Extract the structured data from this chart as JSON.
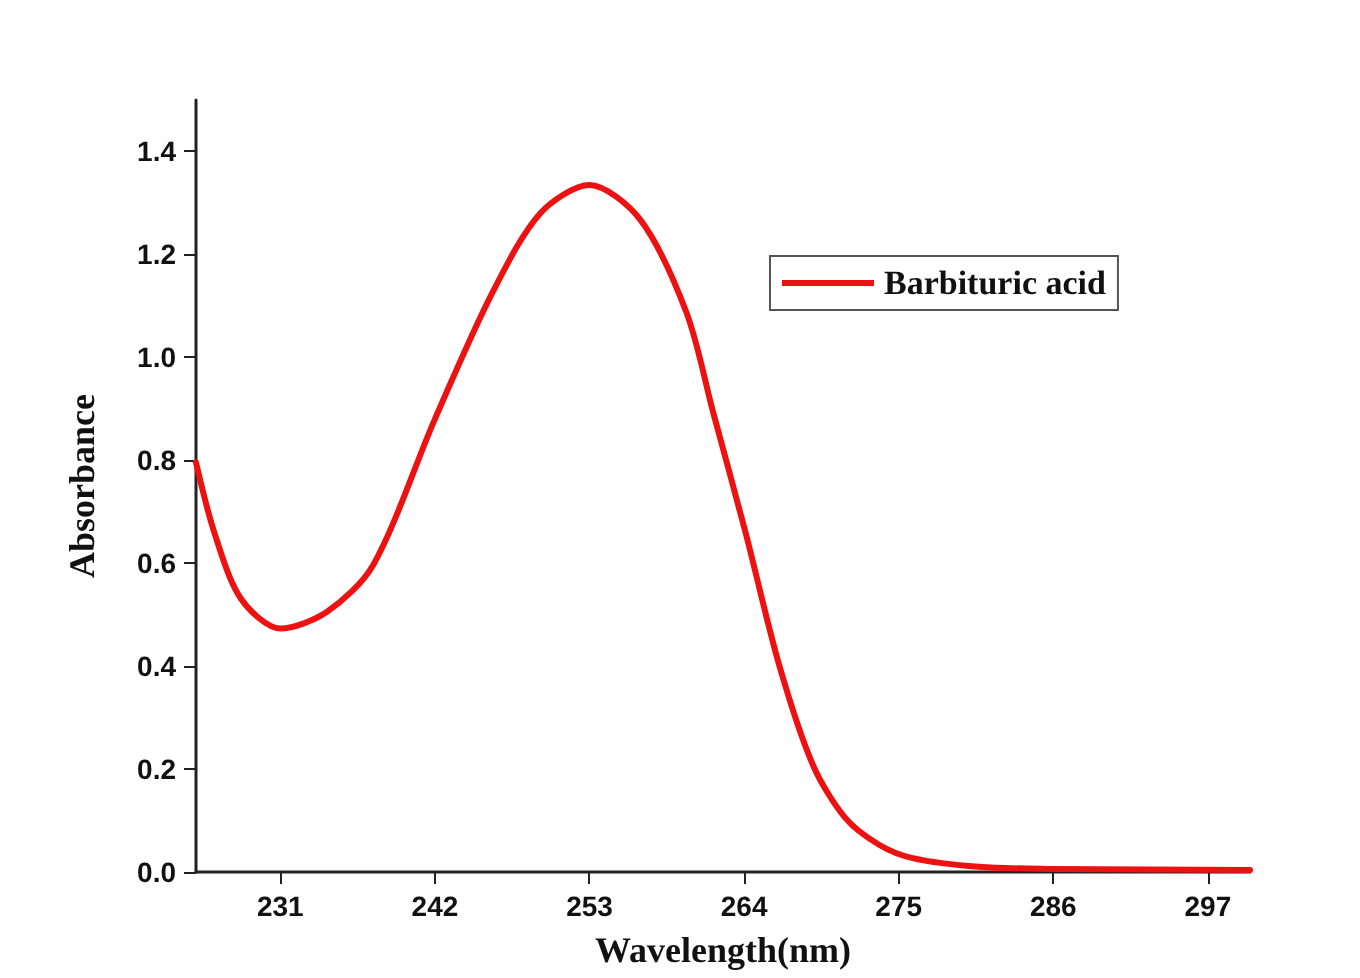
{
  "chart_data": {
    "type": "line",
    "xlabel": "Wavelength(nm)",
    "ylabel": "Absorbance",
    "xlim": [
      225,
      300
    ],
    "ylim": [
      0,
      1.5
    ],
    "xticks": [
      231,
      242,
      253,
      264,
      275,
      286,
      297
    ],
    "yticks": [
      {
        "value": 0,
        "label": "0.0"
      },
      0.2,
      0.4,
      0.6,
      0.8,
      {
        "value": 1,
        "label": "1.0"
      },
      1.2,
      1.4
    ],
    "grid": false,
    "legend": "top right",
    "marker": "none",
    "line_style": "solid",
    "series": [
      {
        "name": "Barbituric acid",
        "color": "#ee1111",
        "x": [
          225,
          226.3,
          228.2,
          231,
          234.3,
          237.6,
          242,
          246.1,
          249.5,
          253,
          256.6,
          259.9,
          261.8,
          264.1,
          266.5,
          268.9,
          271.2,
          273.6,
          276,
          280.7,
          286,
          293,
          300
        ],
        "values": [
          0.796,
          0.66,
          0.531,
          0.473,
          0.505,
          0.596,
          0.88,
          1.126,
          1.28,
          1.335,
          1.268,
          1.087,
          0.893,
          0.66,
          0.402,
          0.208,
          0.105,
          0.053,
          0.027,
          0.01,
          0.006,
          0.005,
          0.004
        ]
      }
    ]
  }
}
